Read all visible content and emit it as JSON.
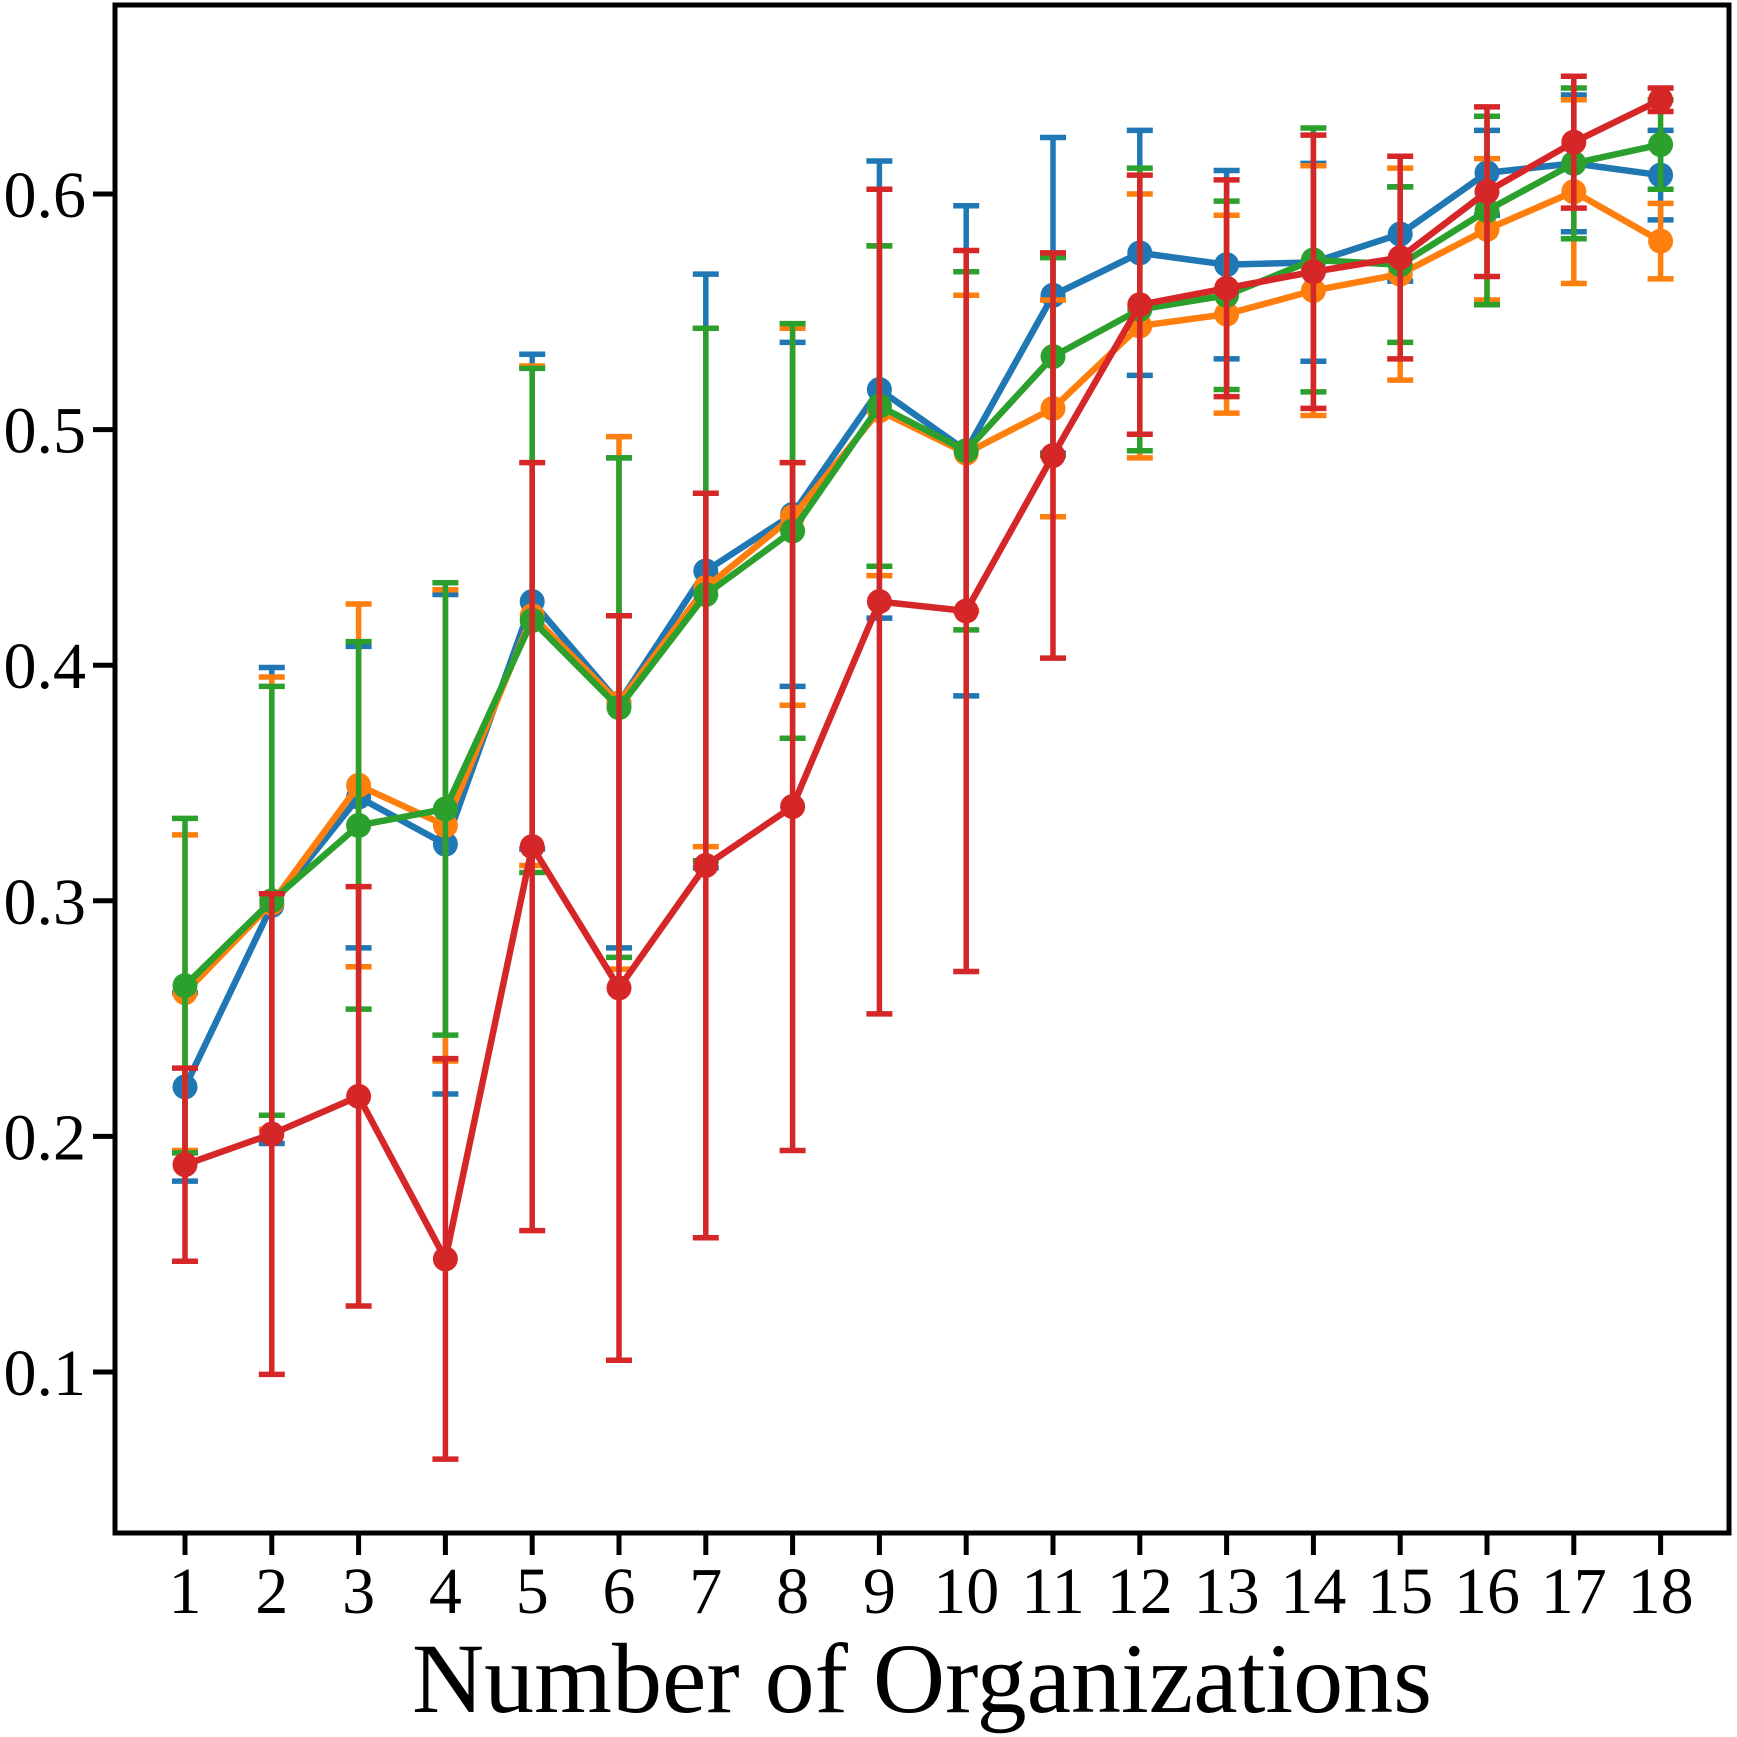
{
  "figure": {
    "background": "#ffffff",
    "axis_color": "#000000"
  },
  "chart_data": {
    "type": "line",
    "title": "",
    "xlabel": "Number of Organizations",
    "ylabel": "",
    "x": [
      1,
      2,
      3,
      4,
      5,
      6,
      7,
      8,
      9,
      10,
      11,
      12,
      13,
      14,
      15,
      16,
      17,
      18
    ],
    "xtick_labels": [
      "1",
      "2",
      "3",
      "4",
      "5",
      "6",
      "7",
      "8",
      "9",
      "10",
      "11",
      "12",
      "13",
      "14",
      "15",
      "16",
      "17",
      "18"
    ],
    "ytick_values": [
      0.1,
      0.2,
      0.3,
      0.4,
      0.5,
      0.6
    ],
    "ytick_labels": [
      "0.1",
      "0.2",
      "0.3",
      "0.4",
      "0.5",
      "0.6"
    ],
    "ylim": [
      0.032,
      0.678
    ],
    "xlim": [
      0.2,
      18.5
    ],
    "grid": false,
    "legend": "none",
    "error_bars": true,
    "series": [
      {
        "name": "blue",
        "color": "#1f77b4",
        "marker": "circle",
        "values": [
          0.221,
          0.298,
          0.344,
          0.324,
          0.427,
          0.384,
          0.44,
          0.464,
          0.517,
          0.491,
          0.557,
          0.575,
          0.57,
          0.571,
          0.583,
          0.609,
          0.613,
          0.608
        ],
        "errors": [
          0.04,
          0.101,
          0.064,
          0.106,
          0.105,
          0.104,
          0.126,
          0.073,
          0.097,
          0.104,
          0.067,
          0.052,
          0.04,
          0.042,
          0.02,
          0.018,
          0.029,
          0.019
        ]
      },
      {
        "name": "orange",
        "color": "#ff7f0e",
        "marker": "circle",
        "values": [
          0.261,
          0.299,
          0.349,
          0.332,
          0.421,
          0.384,
          0.433,
          0.463,
          0.508,
          0.49,
          0.509,
          0.544,
          0.549,
          0.559,
          0.566,
          0.585,
          0.601,
          0.58
        ],
        "errors": [
          0.067,
          0.096,
          0.077,
          0.1,
          0.106,
          0.113,
          0.11,
          0.08,
          0.07,
          0.067,
          0.046,
          0.056,
          0.042,
          0.053,
          0.045,
          0.03,
          0.039,
          0.016
        ]
      },
      {
        "name": "green",
        "color": "#2ca02c",
        "marker": "circle",
        "values": [
          0.264,
          0.3,
          0.332,
          0.339,
          0.419,
          0.382,
          0.43,
          0.457,
          0.51,
          0.491,
          0.531,
          0.551,
          0.557,
          0.572,
          0.57,
          0.593,
          0.613,
          0.621
        ],
        "errors": [
          0.071,
          0.091,
          0.078,
          0.096,
          0.107,
          0.106,
          0.113,
          0.088,
          0.068,
          0.076,
          0.042,
          0.06,
          0.04,
          0.056,
          0.033,
          0.04,
          0.032,
          0.019
        ]
      },
      {
        "name": "red",
        "color": "#d62728",
        "marker": "circle",
        "values": [
          0.188,
          0.201,
          0.217,
          0.148,
          0.323,
          0.263,
          0.315,
          0.34,
          0.427,
          0.423,
          0.489,
          0.553,
          0.56,
          0.567,
          0.573,
          0.601,
          0.622,
          0.64
        ],
        "errors": [
          0.041,
          0.102,
          0.089,
          0.085,
          0.163,
          0.158,
          0.158,
          0.146,
          0.175,
          0.153,
          0.086,
          0.055,
          0.046,
          0.058,
          0.043,
          0.036,
          0.028,
          0.005
        ]
      }
    ]
  }
}
